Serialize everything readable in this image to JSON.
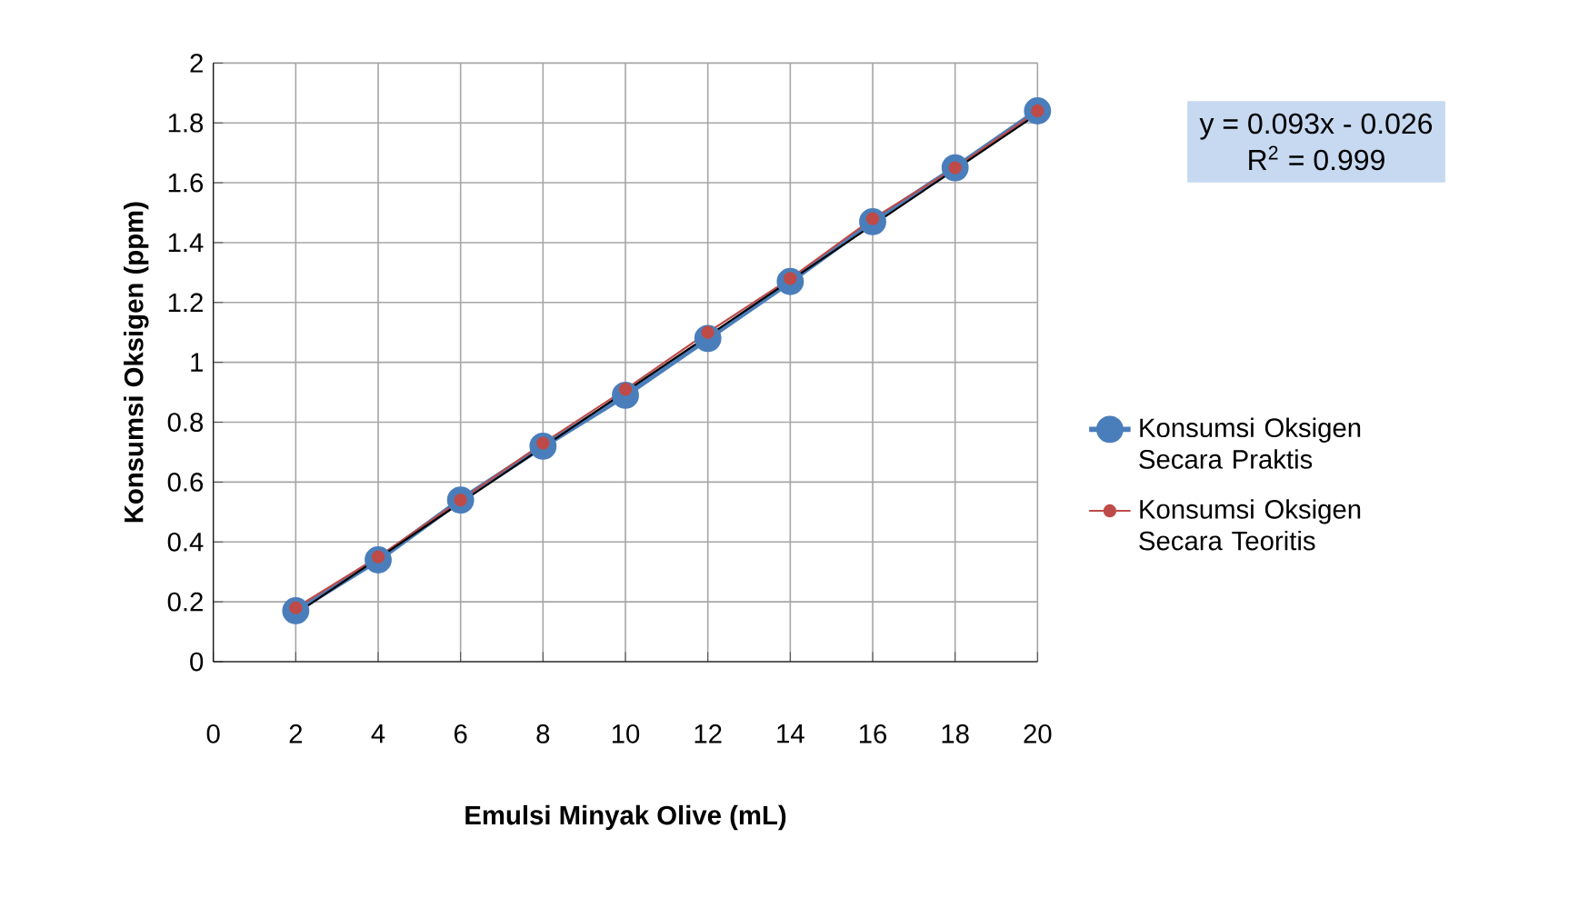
{
  "chart_data": {
    "type": "line",
    "xlabel": "Emulsi Minyak  Olive (mL)",
    "ylabel": "Konsumsi Oksigen (ppm)",
    "x": [
      2,
      4,
      6,
      8,
      10,
      12,
      14,
      16,
      18,
      20
    ],
    "series": [
      {
        "name": "Konsumsi Oksigen Secara Praktis",
        "color": "#4a7ebb",
        "marker": "circle",
        "values": [
          0.17,
          0.34,
          0.54,
          0.72,
          0.89,
          1.08,
          1.27,
          1.47,
          1.65,
          1.84
        ]
      },
      {
        "name": "Konsumsi Oksigen Secara Teoritis",
        "color": "#be4b48",
        "marker": "circle",
        "values": [
          0.18,
          0.35,
          0.54,
          0.73,
          0.91,
          1.1,
          1.28,
          1.48,
          1.65,
          1.84
        ]
      },
      {
        "type": "line",
        "color": "#000000",
        "marker": "none",
        "x": [
          2,
          20
        ],
        "values": [
          0.16,
          1.83
        ]
      }
    ],
    "annotations": [
      "y = 0.093x - 0.026",
      "R$^{2}$ = 0.999"
    ],
    "xlim": [
      0,
      20
    ],
    "xticks": [
      0,
      2,
      4,
      6,
      8,
      10,
      12,
      14,
      16,
      18,
      20
    ],
    "ylim": [
      0,
      2
    ],
    "yticks": [
      0,
      0.2,
      0.4,
      0.6,
      0.8,
      1,
      1.2,
      1.4,
      1.6,
      1.8,
      2
    ],
    "grid": true,
    "legend": "right"
  }
}
